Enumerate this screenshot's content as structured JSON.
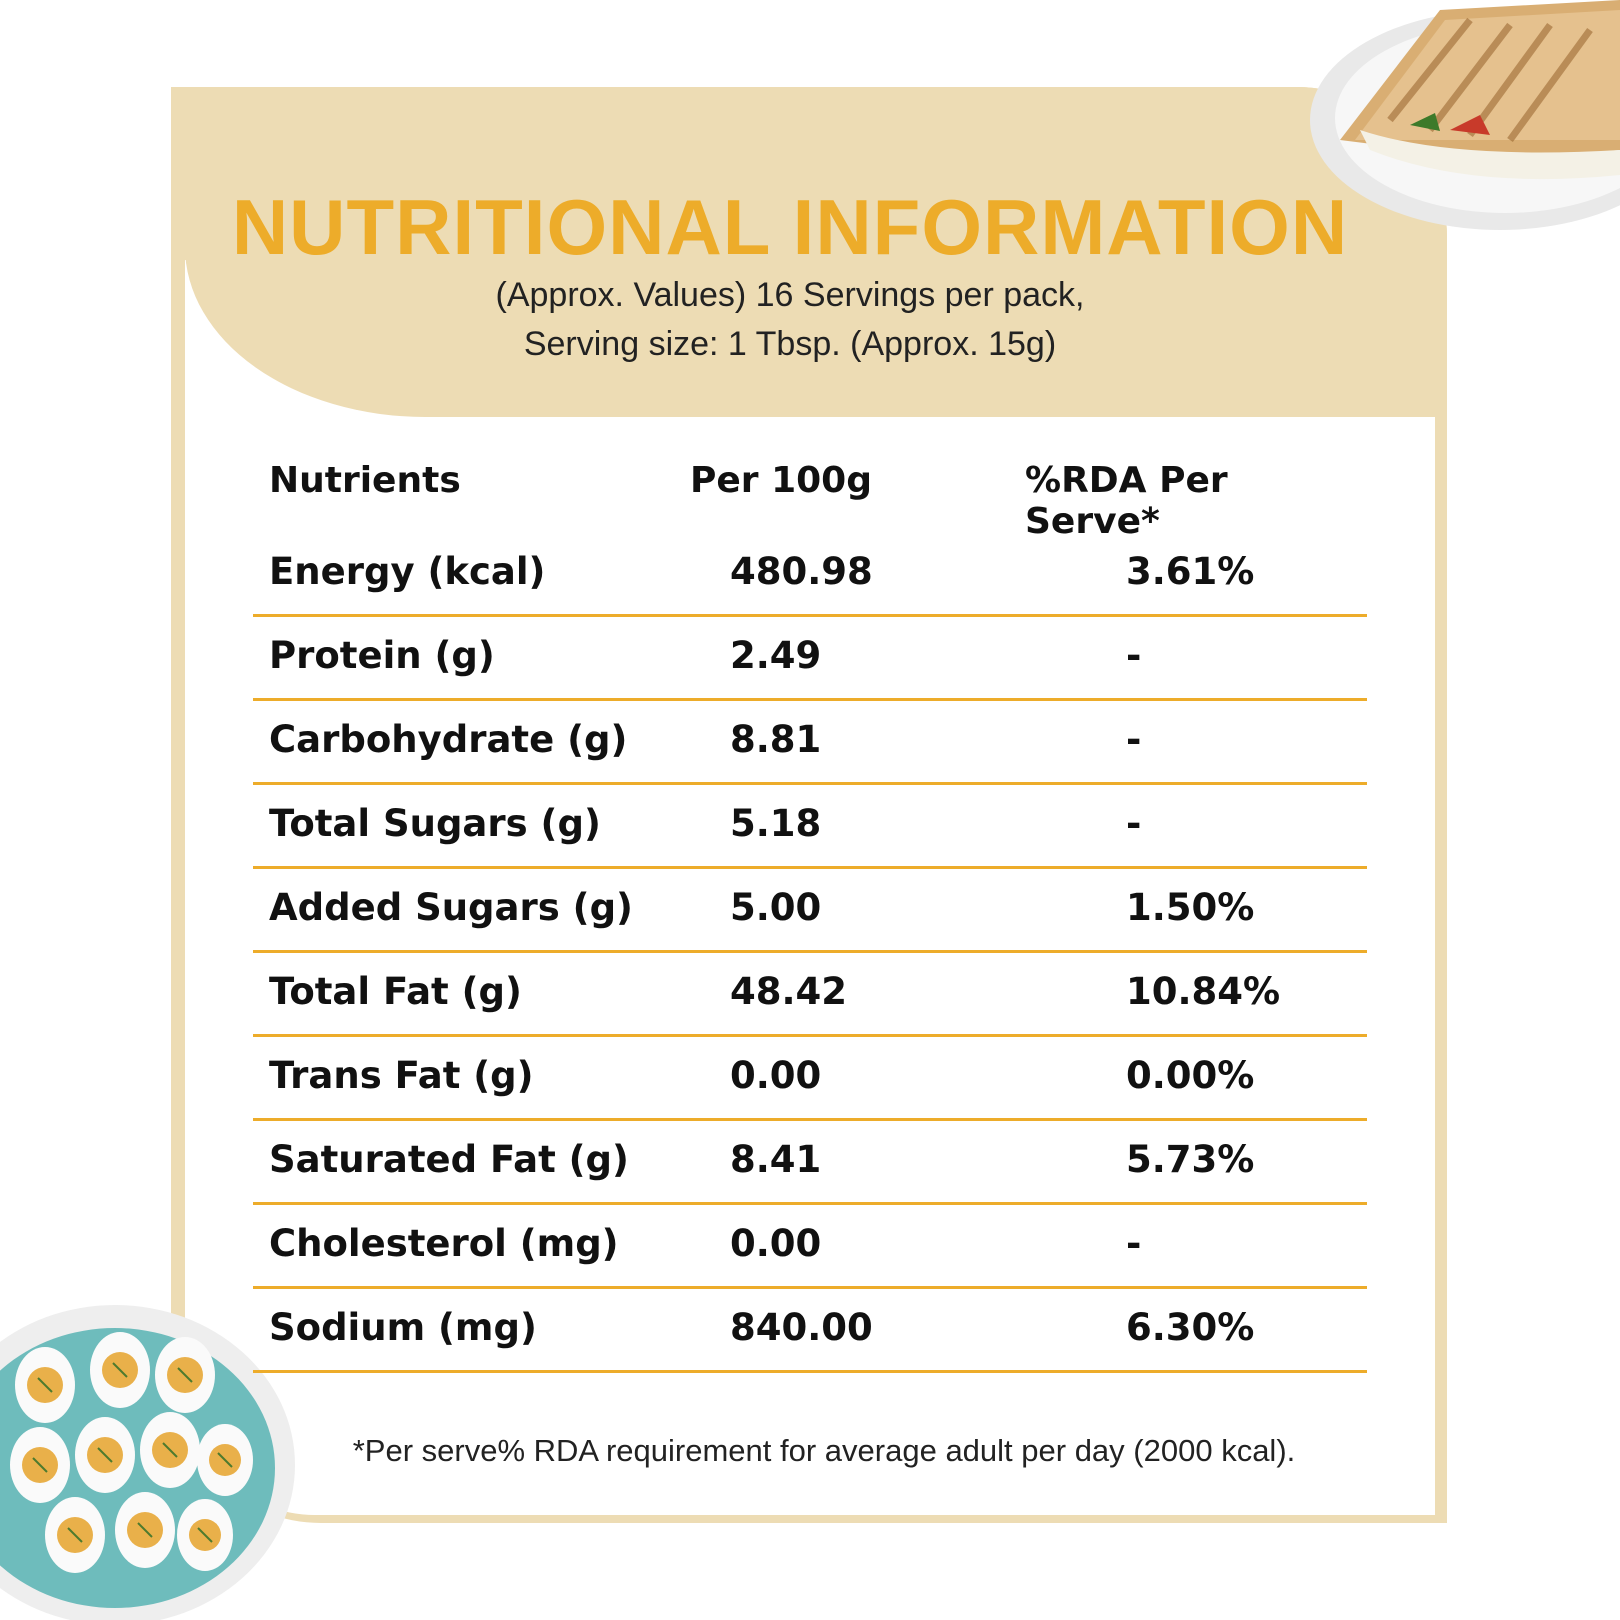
{
  "title": "NUTRITIONAL INFORMATION",
  "subtitle_line1": "(Approx. Values) 16 Servings per pack,",
  "subtitle_line2": "Serving size: 1 Tbsp. (Approx. 15g)",
  "table": {
    "headers": [
      "Nutrients",
      "Per 100g",
      "%RDA Per Serve*"
    ],
    "rows": [
      [
        "Energy (kcal)",
        "480.98",
        "3.61%"
      ],
      [
        "Protein (g)",
        "2.49",
        "-"
      ],
      [
        "Carbohydrate (g)",
        "8.81",
        "-"
      ],
      [
        "Total Sugars (g)",
        "5.18",
        "-"
      ],
      [
        "Added Sugars (g)",
        "5.00",
        "1.50%"
      ],
      [
        "Total Fat (g)",
        "48.42",
        "10.84%"
      ],
      [
        "Trans Fat (g)",
        "0.00",
        "0.00%"
      ],
      [
        "Saturated Fat (g)",
        "8.41",
        "5.73%"
      ],
      [
        "Cholesterol (mg)",
        "0.00",
        "-"
      ],
      [
        "Sodium (mg)",
        "840.00",
        "6.30%"
      ]
    ]
  },
  "footnote": "*Per serve% RDA requirement for average adult per day (2000 kcal).",
  "colors": {
    "accent": "#edac2a",
    "panel": "#eddcb4"
  }
}
